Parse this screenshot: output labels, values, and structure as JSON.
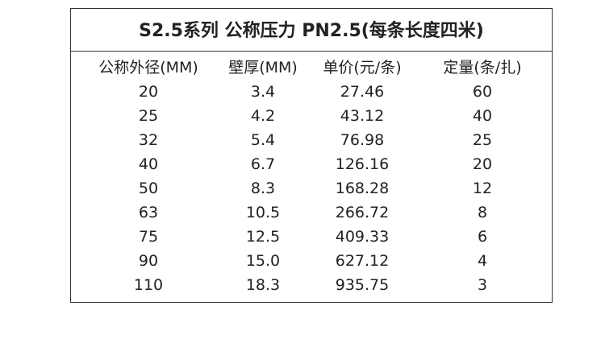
{
  "table": {
    "title": "S2.5系列 公称压力 PN2.5(每条长度四米)",
    "header": [
      "公称外径(MM)",
      "壁厚(MM)",
      "单价(元/条)",
      "定量(条/扎)"
    ],
    "rows": [
      [
        "20",
        "3.4",
        "27.46",
        "60"
      ],
      [
        "25",
        "4.2",
        "43.12",
        "40"
      ],
      [
        "32",
        "5.4",
        "76.98",
        "25"
      ],
      [
        "40",
        "6.7",
        "126.16",
        "20"
      ],
      [
        "50",
        "8.3",
        "168.28",
        "12"
      ],
      [
        "63",
        "10.5",
        "266.72",
        "8"
      ],
      [
        "75",
        "12.5",
        "409.33",
        "6"
      ],
      [
        "90",
        "15.0",
        "627.12",
        "4"
      ],
      [
        "110",
        "18.3",
        "935.75",
        "3"
      ]
    ]
  }
}
